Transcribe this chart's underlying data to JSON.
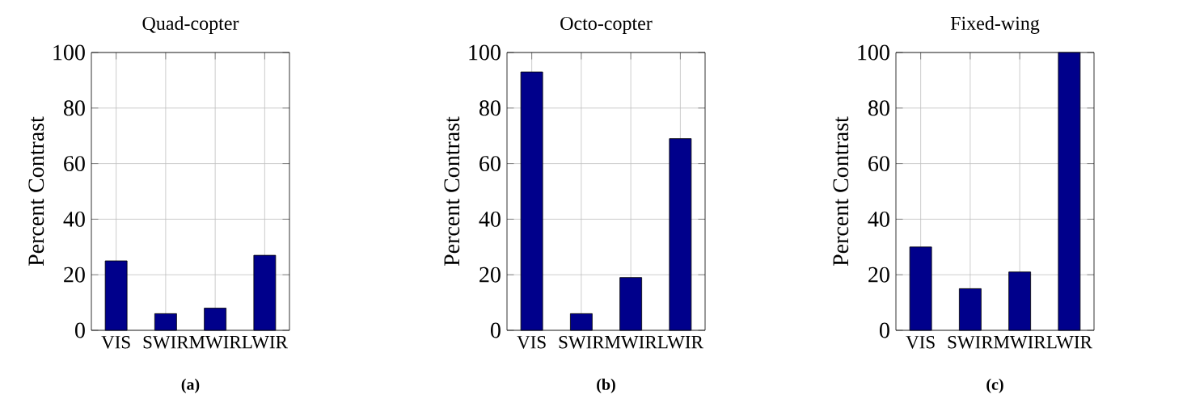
{
  "chart_data": [
    {
      "type": "bar",
      "title": "Quad-copter",
      "ylabel": "Percent Contrast",
      "categories": [
        "VIS",
        "SWIR",
        "MWIR",
        "LWIR"
      ],
      "values": [
        25,
        6,
        8,
        27
      ],
      "color": "#00008b",
      "ylim": [
        0,
        100
      ],
      "yticks": [
        0,
        20,
        40,
        60,
        80,
        100
      ],
      "grid": true,
      "annotations": [
        "(a)"
      ]
    },
    {
      "type": "bar",
      "title": "Octo-copter",
      "ylabel": "Percent Contrast",
      "categories": [
        "VIS",
        "SWIR",
        "MWIR",
        "LWIR"
      ],
      "values": [
        93,
        6,
        19,
        69
      ],
      "color": "#00008b",
      "ylim": [
        0,
        100
      ],
      "yticks": [
        0,
        20,
        40,
        60,
        80,
        100
      ],
      "grid": true,
      "annotations": [
        "(b)"
      ]
    },
    {
      "type": "bar",
      "title": "Fixed-wing",
      "ylabel": "Percent Contrast",
      "categories": [
        "VIS",
        "SWIR",
        "MWIR",
        "LWIR"
      ],
      "values": [
        30,
        15,
        21,
        100
      ],
      "color": "#00008b",
      "ylim": [
        0,
        100
      ],
      "yticks": [
        0,
        20,
        40,
        60,
        80,
        100
      ],
      "grid": true,
      "annotations": [
        "(c)"
      ]
    }
  ]
}
